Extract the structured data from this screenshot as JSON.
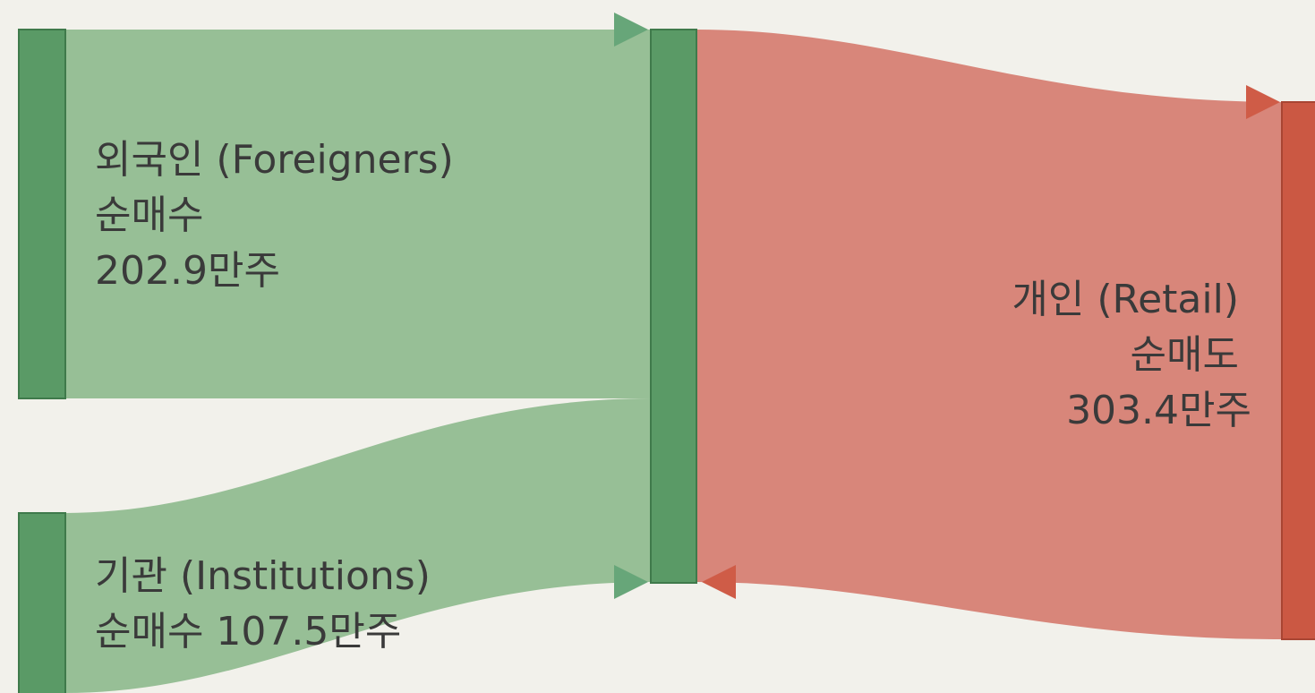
{
  "colors": {
    "background": "#f2f1eb",
    "buy_node": "#5a9a66",
    "buy_node_border": "#3f7a4b",
    "buy_flow": "#97bf96",
    "buy_arrow": "#67a679",
    "sell_node": "#cb5843",
    "sell_node_border": "#a84533",
    "sell_flow": "#d8867a",
    "sell_arrow": "#cf5c47",
    "text": "#3a3a3a"
  },
  "nodes": {
    "foreigners": {
      "lines": [
        "외국인 (Foreigners)",
        "순매수",
        "202.9만주"
      ],
      "value": 202.9
    },
    "institutions": {
      "lines": [
        "기관 (Institutions)",
        "순매수 107.5만주"
      ],
      "value": 107.5
    },
    "retail": {
      "lines": [
        "개인 (Retail)",
        "순매도",
        "303.4만주"
      ],
      "value": 303.4
    }
  }
}
